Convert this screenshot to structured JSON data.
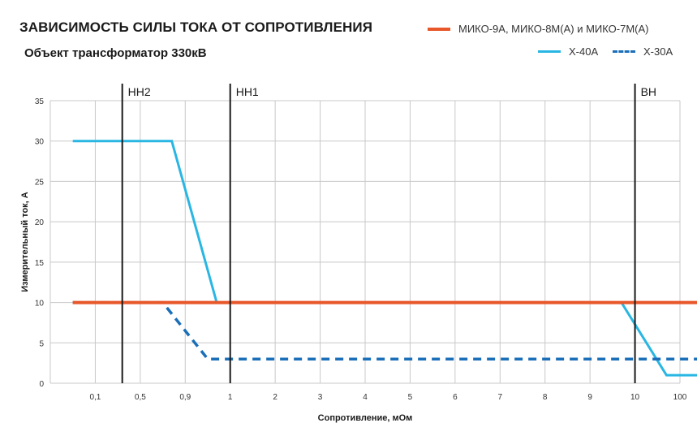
{
  "chart_data": {
    "type": "line",
    "title": "ЗАВИСИМОСТЬ СИЛЫ ТОКА ОТ СОПРОТИВЛЕНИЯ",
    "subtitle": "Объект трансформатор 330кВ",
    "xlabel": "Сопротивление, мОм",
    "ylabel": "Измерительный ток, А",
    "x_ticks": [
      "0,1",
      "0,5",
      "0,9",
      "1",
      "2",
      "3",
      "4",
      "5",
      "6",
      "7",
      "8",
      "9",
      "10",
      "100"
    ],
    "ylim": [
      0,
      35
    ],
    "y_ticks": [
      0,
      5,
      10,
      15,
      20,
      25,
      30,
      35
    ],
    "grid": true,
    "legend_position": "top-right",
    "vertical_markers": [
      {
        "label": "НН2",
        "x_index": 1.6
      },
      {
        "label": "НН1",
        "x_index": 4.0
      },
      {
        "label": "ВН",
        "x_index": 13.0
      }
    ],
    "series": [
      {
        "name": "МИКО-9А, МИКО-8М(А) и МИКО-7М(А)",
        "color": "#e8572a",
        "style": "solid",
        "points": [
          [
            0.5,
            10
          ],
          [
            14.5,
            10
          ]
        ]
      },
      {
        "name": "Х-40А",
        "color": "#29b6e3",
        "style": "solid",
        "points": [
          [
            0.5,
            30
          ],
          [
            2.7,
            30
          ],
          [
            3.7,
            10
          ],
          [
            12.7,
            10
          ],
          [
            13.7,
            1
          ],
          [
            14.5,
            1
          ]
        ]
      },
      {
        "name": "Х-30А",
        "color": "#1a6fb8",
        "style": "dashed",
        "points": [
          [
            0.5,
            10
          ],
          [
            2.5,
            10
          ],
          [
            3.5,
            3
          ],
          [
            14.5,
            3
          ]
        ]
      }
    ]
  },
  "legend": {
    "orange": "МИКО-9А, МИКО-8М(А) и МИКО-7М(А)",
    "cyan": "Х-40А",
    "blue": "Х-30А"
  }
}
